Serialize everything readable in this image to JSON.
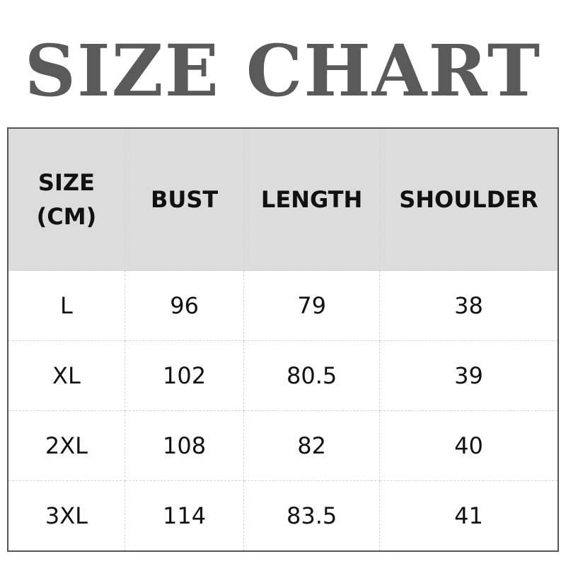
{
  "title": "SIZE CHART",
  "chart_data": {
    "type": "table",
    "columns": [
      "SIZE (CM)",
      "BUST",
      "LENGTH",
      "SHOULDER"
    ],
    "header": {
      "size_line1": "SIZE",
      "size_line2": "(CM)",
      "bust": "BUST",
      "length": "LENGTH",
      "shoulder": "SHOULDER"
    },
    "rows": [
      [
        "L",
        "96",
        "79",
        "38"
      ],
      [
        "XL",
        "102",
        "80.5",
        "39"
      ],
      [
        "2XL",
        "108",
        "82",
        "40"
      ],
      [
        "3XL",
        "114",
        "83.5",
        "41"
      ]
    ]
  },
  "colors": {
    "title": "#5a5a5a",
    "header_bg": "#dcdcdc"
  }
}
